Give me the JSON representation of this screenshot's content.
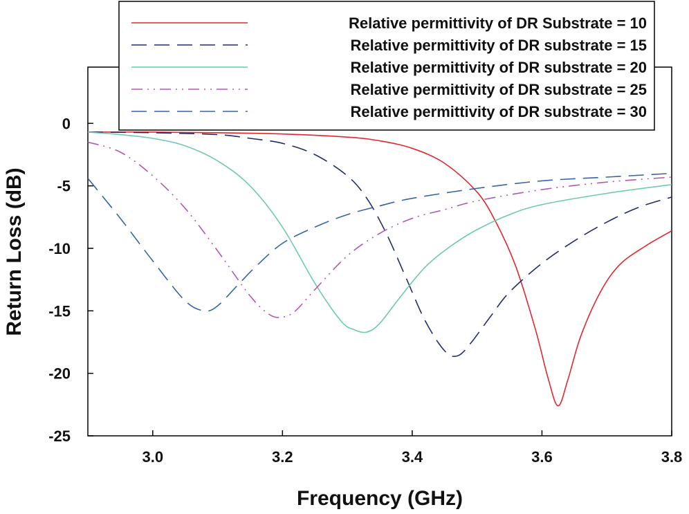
{
  "chart_data": {
    "type": "line",
    "title": "",
    "xlabel": "Frequency (GHz)",
    "ylabel": "Return Loss (dB)",
    "xlim": [
      2.9,
      3.8
    ],
    "ylim": [
      -25,
      4.5
    ],
    "xticks": [
      3.0,
      3.2,
      3.4,
      3.6,
      3.8
    ],
    "xtick_labels": [
      "3.0",
      "3.2",
      "3.4",
      "3.6",
      "3.8"
    ],
    "yticks": [
      0,
      -5,
      -10,
      -15,
      -20,
      -25
    ],
    "ytick_labels": [
      "0",
      "-5",
      "-10",
      "-15",
      "-20",
      "-25"
    ],
    "grid": false,
    "legend_position": "top",
    "series": [
      {
        "name": "Relative permittivity of DR Substrate = 10",
        "color": "#e3262b",
        "dash": "solid",
        "x": [
          2.9,
          3.0,
          3.1,
          3.2,
          3.3,
          3.35,
          3.4,
          3.45,
          3.5,
          3.53,
          3.56,
          3.59,
          3.61,
          3.625,
          3.64,
          3.66,
          3.69,
          3.72,
          3.76,
          3.8
        ],
        "y": [
          -0.7,
          -0.7,
          -0.75,
          -0.85,
          -1.1,
          -1.4,
          -2.0,
          -3.2,
          -5.5,
          -8.0,
          -11.5,
          -16.5,
          -20.5,
          -22.6,
          -20.5,
          -17.0,
          -13.5,
          -11.3,
          -9.8,
          -8.6
        ]
      },
      {
        "name": "Relative permittivity of DR substrate = 15",
        "color": "#232a6e",
        "dash": "long-dash",
        "x": [
          2.9,
          3.0,
          3.1,
          3.15,
          3.2,
          3.25,
          3.3,
          3.33,
          3.36,
          3.39,
          3.42,
          3.45,
          3.47,
          3.49,
          3.52,
          3.55,
          3.6,
          3.65,
          3.7,
          3.75,
          3.8
        ],
        "y": [
          -0.7,
          -0.75,
          -0.9,
          -1.2,
          -1.6,
          -2.5,
          -4.2,
          -6.0,
          -8.8,
          -12.3,
          -15.8,
          -18.2,
          -18.6,
          -17.6,
          -15.5,
          -13.5,
          -11.2,
          -9.4,
          -7.9,
          -6.7,
          -5.9
        ]
      },
      {
        "name": "Relative permittivity of DR substrate = 20",
        "color": "#6ccab0",
        "dash": "solid",
        "x": [
          2.9,
          2.95,
          3.0,
          3.05,
          3.1,
          3.15,
          3.2,
          3.25,
          3.29,
          3.31,
          3.33,
          3.35,
          3.38,
          3.42,
          3.46,
          3.5,
          3.55,
          3.6,
          3.7,
          3.8
        ],
        "y": [
          -0.7,
          -0.9,
          -1.2,
          -1.8,
          -3.0,
          -5.0,
          -8.3,
          -12.8,
          -15.8,
          -16.5,
          -16.7,
          -16.0,
          -14.0,
          -11.5,
          -9.8,
          -8.5,
          -7.3,
          -6.5,
          -5.6,
          -4.9
        ]
      },
      {
        "name": "Relative permittivity of DR substrate = 25",
        "color": "#b058b0",
        "dash": "dash-dot-dot",
        "x": [
          2.9,
          2.95,
          3.0,
          3.05,
          3.1,
          3.15,
          3.18,
          3.2,
          3.22,
          3.25,
          3.3,
          3.35,
          3.4,
          3.45,
          3.5,
          3.6,
          3.7,
          3.8
        ],
        "y": [
          -1.5,
          -2.3,
          -4.2,
          -6.8,
          -10.2,
          -13.8,
          -15.3,
          -15.5,
          -15.0,
          -13.3,
          -10.6,
          -8.8,
          -7.6,
          -6.9,
          -6.2,
          -5.3,
          -4.7,
          -4.3
        ]
      },
      {
        "name": "Relative permittivity of DR substrate = 30",
        "color": "#3565a8",
        "dash": "long-dash",
        "x": [
          2.9,
          2.95,
          3.0,
          3.05,
          3.08,
          3.1,
          3.13,
          3.16,
          3.2,
          3.25,
          3.3,
          3.35,
          3.4,
          3.5,
          3.6,
          3.7,
          3.8
        ],
        "y": [
          -4.4,
          -7.6,
          -11.0,
          -14.2,
          -15.0,
          -14.6,
          -13.0,
          -11.4,
          -9.6,
          -8.3,
          -7.3,
          -6.6,
          -6.0,
          -5.2,
          -4.6,
          -4.3,
          -4.0
        ]
      }
    ]
  }
}
